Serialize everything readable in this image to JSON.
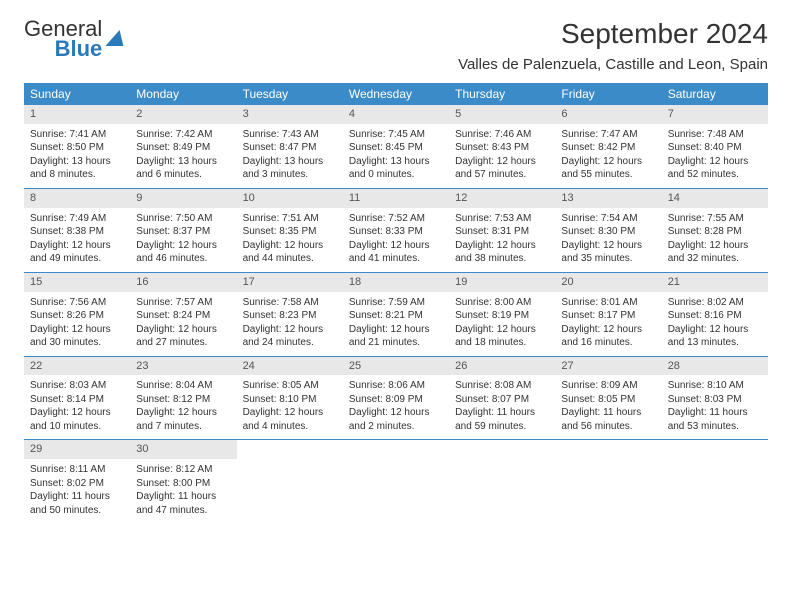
{
  "logo": {
    "line1": "General",
    "line2": "Blue"
  },
  "header": {
    "month_title": "September 2024",
    "location": "Valles de Palenzuela, Castille and Leon, Spain"
  },
  "colors": {
    "header_bg": "#3b8bc9",
    "header_text": "#ffffff",
    "daynum_bg": "#e8e8e8",
    "border": "#3b8bc9",
    "text": "#333333",
    "logo_blue": "#2a7ab9"
  },
  "weekdays": [
    "Sunday",
    "Monday",
    "Tuesday",
    "Wednesday",
    "Thursday",
    "Friday",
    "Saturday"
  ],
  "weeks": [
    [
      {
        "num": "1",
        "sunrise": "Sunrise: 7:41 AM",
        "sunset": "Sunset: 8:50 PM",
        "daylight": "Daylight: 13 hours and 8 minutes."
      },
      {
        "num": "2",
        "sunrise": "Sunrise: 7:42 AM",
        "sunset": "Sunset: 8:49 PM",
        "daylight": "Daylight: 13 hours and 6 minutes."
      },
      {
        "num": "3",
        "sunrise": "Sunrise: 7:43 AM",
        "sunset": "Sunset: 8:47 PM",
        "daylight": "Daylight: 13 hours and 3 minutes."
      },
      {
        "num": "4",
        "sunrise": "Sunrise: 7:45 AM",
        "sunset": "Sunset: 8:45 PM",
        "daylight": "Daylight: 13 hours and 0 minutes."
      },
      {
        "num": "5",
        "sunrise": "Sunrise: 7:46 AM",
        "sunset": "Sunset: 8:43 PM",
        "daylight": "Daylight: 12 hours and 57 minutes."
      },
      {
        "num": "6",
        "sunrise": "Sunrise: 7:47 AM",
        "sunset": "Sunset: 8:42 PM",
        "daylight": "Daylight: 12 hours and 55 minutes."
      },
      {
        "num": "7",
        "sunrise": "Sunrise: 7:48 AM",
        "sunset": "Sunset: 8:40 PM",
        "daylight": "Daylight: 12 hours and 52 minutes."
      }
    ],
    [
      {
        "num": "8",
        "sunrise": "Sunrise: 7:49 AM",
        "sunset": "Sunset: 8:38 PM",
        "daylight": "Daylight: 12 hours and 49 minutes."
      },
      {
        "num": "9",
        "sunrise": "Sunrise: 7:50 AM",
        "sunset": "Sunset: 8:37 PM",
        "daylight": "Daylight: 12 hours and 46 minutes."
      },
      {
        "num": "10",
        "sunrise": "Sunrise: 7:51 AM",
        "sunset": "Sunset: 8:35 PM",
        "daylight": "Daylight: 12 hours and 44 minutes."
      },
      {
        "num": "11",
        "sunrise": "Sunrise: 7:52 AM",
        "sunset": "Sunset: 8:33 PM",
        "daylight": "Daylight: 12 hours and 41 minutes."
      },
      {
        "num": "12",
        "sunrise": "Sunrise: 7:53 AM",
        "sunset": "Sunset: 8:31 PM",
        "daylight": "Daylight: 12 hours and 38 minutes."
      },
      {
        "num": "13",
        "sunrise": "Sunrise: 7:54 AM",
        "sunset": "Sunset: 8:30 PM",
        "daylight": "Daylight: 12 hours and 35 minutes."
      },
      {
        "num": "14",
        "sunrise": "Sunrise: 7:55 AM",
        "sunset": "Sunset: 8:28 PM",
        "daylight": "Daylight: 12 hours and 32 minutes."
      }
    ],
    [
      {
        "num": "15",
        "sunrise": "Sunrise: 7:56 AM",
        "sunset": "Sunset: 8:26 PM",
        "daylight": "Daylight: 12 hours and 30 minutes."
      },
      {
        "num": "16",
        "sunrise": "Sunrise: 7:57 AM",
        "sunset": "Sunset: 8:24 PM",
        "daylight": "Daylight: 12 hours and 27 minutes."
      },
      {
        "num": "17",
        "sunrise": "Sunrise: 7:58 AM",
        "sunset": "Sunset: 8:23 PM",
        "daylight": "Daylight: 12 hours and 24 minutes."
      },
      {
        "num": "18",
        "sunrise": "Sunrise: 7:59 AM",
        "sunset": "Sunset: 8:21 PM",
        "daylight": "Daylight: 12 hours and 21 minutes."
      },
      {
        "num": "19",
        "sunrise": "Sunrise: 8:00 AM",
        "sunset": "Sunset: 8:19 PM",
        "daylight": "Daylight: 12 hours and 18 minutes."
      },
      {
        "num": "20",
        "sunrise": "Sunrise: 8:01 AM",
        "sunset": "Sunset: 8:17 PM",
        "daylight": "Daylight: 12 hours and 16 minutes."
      },
      {
        "num": "21",
        "sunrise": "Sunrise: 8:02 AM",
        "sunset": "Sunset: 8:16 PM",
        "daylight": "Daylight: 12 hours and 13 minutes."
      }
    ],
    [
      {
        "num": "22",
        "sunrise": "Sunrise: 8:03 AM",
        "sunset": "Sunset: 8:14 PM",
        "daylight": "Daylight: 12 hours and 10 minutes."
      },
      {
        "num": "23",
        "sunrise": "Sunrise: 8:04 AM",
        "sunset": "Sunset: 8:12 PM",
        "daylight": "Daylight: 12 hours and 7 minutes."
      },
      {
        "num": "24",
        "sunrise": "Sunrise: 8:05 AM",
        "sunset": "Sunset: 8:10 PM",
        "daylight": "Daylight: 12 hours and 4 minutes."
      },
      {
        "num": "25",
        "sunrise": "Sunrise: 8:06 AM",
        "sunset": "Sunset: 8:09 PM",
        "daylight": "Daylight: 12 hours and 2 minutes."
      },
      {
        "num": "26",
        "sunrise": "Sunrise: 8:08 AM",
        "sunset": "Sunset: 8:07 PM",
        "daylight": "Daylight: 11 hours and 59 minutes."
      },
      {
        "num": "27",
        "sunrise": "Sunrise: 8:09 AM",
        "sunset": "Sunset: 8:05 PM",
        "daylight": "Daylight: 11 hours and 56 minutes."
      },
      {
        "num": "28",
        "sunrise": "Sunrise: 8:10 AM",
        "sunset": "Sunset: 8:03 PM",
        "daylight": "Daylight: 11 hours and 53 minutes."
      }
    ],
    [
      {
        "num": "29",
        "sunrise": "Sunrise: 8:11 AM",
        "sunset": "Sunset: 8:02 PM",
        "daylight": "Daylight: 11 hours and 50 minutes."
      },
      {
        "num": "30",
        "sunrise": "Sunrise: 8:12 AM",
        "sunset": "Sunset: 8:00 PM",
        "daylight": "Daylight: 11 hours and 47 minutes."
      },
      null,
      null,
      null,
      null,
      null
    ]
  ]
}
